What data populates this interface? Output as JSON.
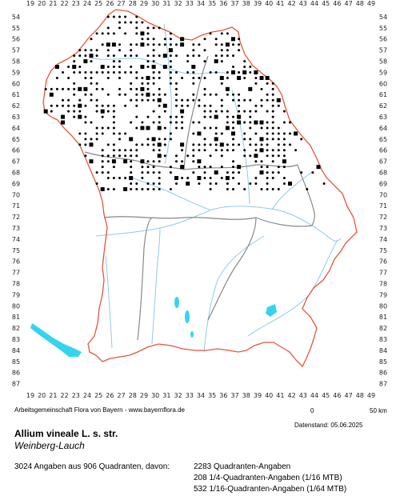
{
  "map": {
    "col_labels": [
      "19",
      "20",
      "21",
      "22",
      "23",
      "24",
      "25",
      "26",
      "27",
      "28",
      "29",
      "30",
      "31",
      "32",
      "33",
      "34",
      "35",
      "36",
      "37",
      "38",
      "39",
      "40",
      "41",
      "42",
      "43",
      "44",
      "45",
      "46",
      "47",
      "48",
      "49"
    ],
    "row_labels": [
      "54",
      "55",
      "56",
      "57",
      "58",
      "59",
      "60",
      "61",
      "62",
      "63",
      "64",
      "65",
      "66",
      "67",
      "68",
      "69",
      "70",
      "71",
      "72",
      "73",
      "74",
      "75",
      "76",
      "77",
      "78",
      "79",
      "80",
      "81",
      "82",
      "83",
      "84",
      "85",
      "86",
      "87"
    ],
    "colors": {
      "border": "#e8553a",
      "inner_border": "#888888",
      "river": "#8fcbe8",
      "lake": "#35d4ee",
      "dot": "#000000"
    }
  },
  "footer": {
    "credit": "Arbeitsgemeinschaft Flora von Bayern - www.bayernflora.de",
    "date": "Datenstand: 05.06.2025",
    "scale_start": "0",
    "scale_end": "50 km",
    "title": "Allium vineale L. s. str.",
    "subtitle": "Weinberg-Lauch",
    "summary": "3024 Angaben aus 906 Quadranten, davon:",
    "legend": [
      "2283 Quadranten-Angaben",
      "208 1/4-Quadranten-Angaben (1/16 MTB)",
      "532 1/16-Quadranten-Angaben (1/64 MTB)"
    ]
  }
}
